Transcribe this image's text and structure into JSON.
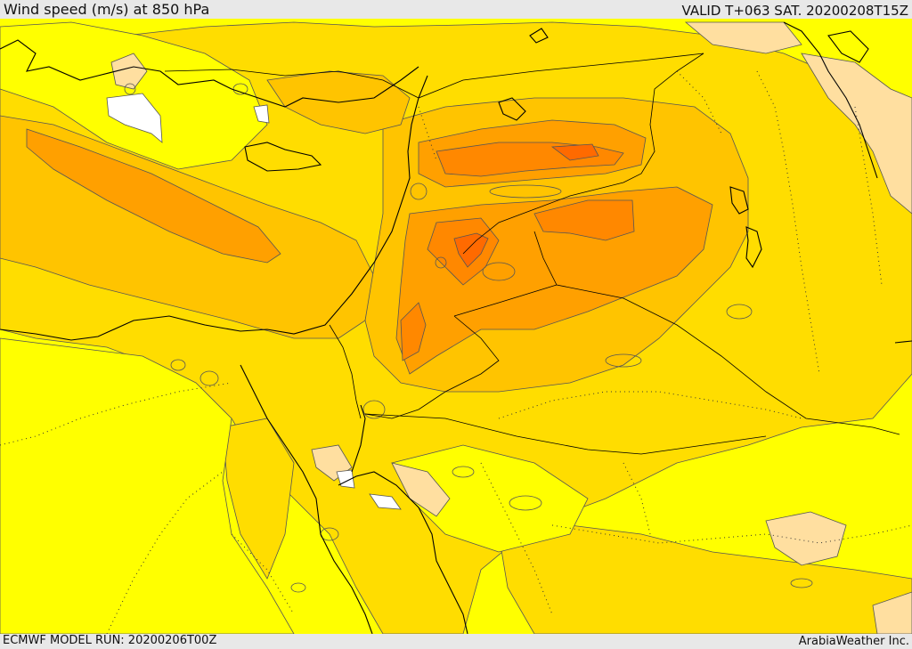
{
  "header": {
    "title": "Wind speed (m/s) at 850 hPa",
    "valid_time": "VALID T+063 SAT. 20200208T15Z"
  },
  "footer": {
    "model_run": "ECMWF MODEL RUN: 20200206T00Z",
    "credit": "ArabiaWeather Inc."
  },
  "map": {
    "field": "wind speed at 850 hPa",
    "colors": {
      "calm": "#ffffff",
      "light": "#ffdfa0",
      "base": "#ffff00",
      "moderate": "#ffdd00",
      "fresh": "#ffc400",
      "strong": "#ffa000",
      "very_strong": "#ff8800",
      "extreme": "#ff6a00",
      "contour": "#555555",
      "coastline": "#000000"
    }
  }
}
